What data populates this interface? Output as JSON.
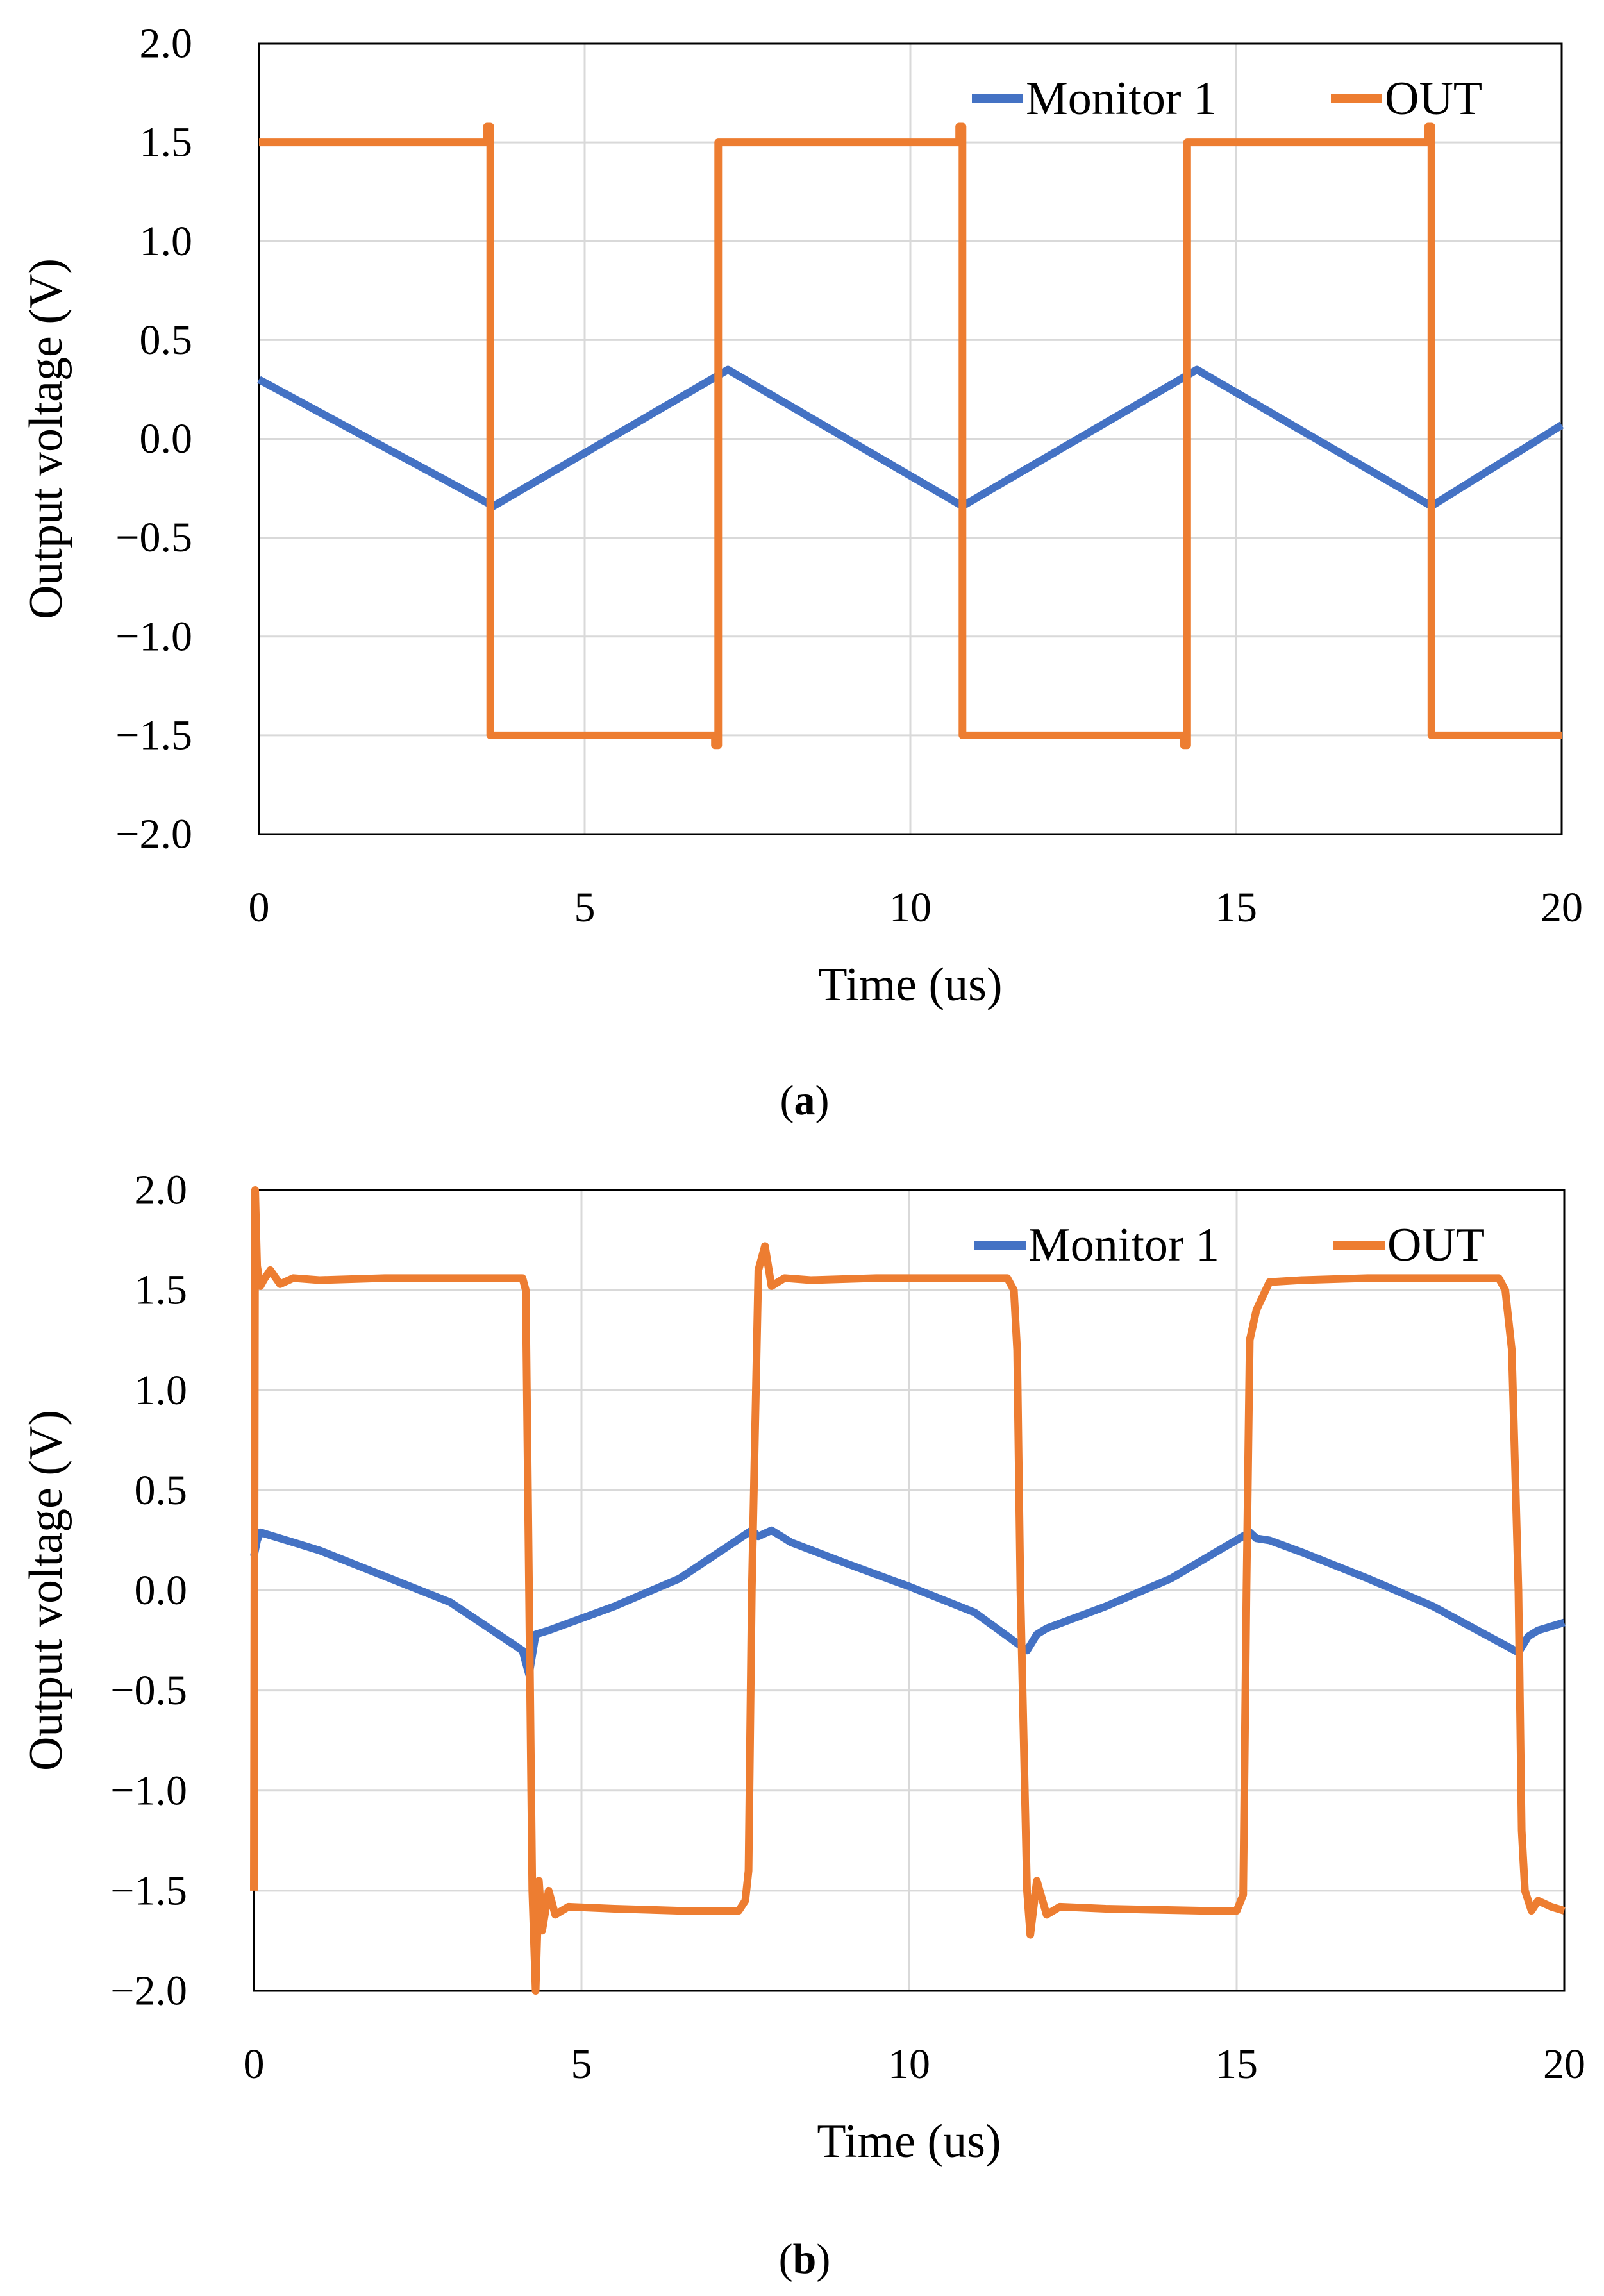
{
  "colors": {
    "monitor": "#4472C4",
    "out": "#ED7D31",
    "grid": "#D9D9D9",
    "axis": "#000000"
  },
  "chart_data": [
    {
      "panel": "a",
      "caption_open": "(",
      "caption_letter": "a",
      "caption_close": ")",
      "type": "line",
      "xlabel": "Time (us)",
      "ylabel": "Output voltage (V)",
      "xlim": [
        0,
        20
      ],
      "ylim": [
        -2.0,
        2.0
      ],
      "xticks": [
        0,
        5,
        10,
        15,
        20
      ],
      "yticks": [
        2.0,
        1.5,
        1.0,
        0.5,
        0.0,
        -0.5,
        -1.0,
        -1.5,
        -2.0
      ],
      "xtick_labels": [
        "0",
        "5",
        "10",
        "15",
        "20"
      ],
      "ytick_labels": [
        "2.0",
        "1.5",
        "1.0",
        "0.5",
        "0.0",
        "−0.5",
        "−1.0",
        "−1.5",
        "−2.0"
      ],
      "legend_position": "top-right",
      "series": [
        {
          "name": "Monitor 1",
          "color": "#4472C4",
          "x": [
            0,
            3.6,
            7.2,
            10.8,
            14.4,
            18.0,
            20.0
          ],
          "y": [
            0.3,
            -0.34,
            0.35,
            -0.34,
            0.35,
            -0.34,
            0.07
          ]
        },
        {
          "name": "OUT",
          "color": "#ED7D31",
          "x": [
            0,
            3.5,
            3.5,
            3.55,
            3.55,
            7.0,
            7.0,
            7.05,
            7.05,
            10.75,
            10.75,
            10.8,
            10.8,
            14.2,
            14.2,
            14.25,
            14.25,
            17.95,
            17.95,
            18.0,
            18.0,
            20.0
          ],
          "y": [
            1.5,
            1.5,
            1.58,
            1.58,
            -1.5,
            -1.5,
            -1.55,
            -1.55,
            1.5,
            1.5,
            1.58,
            1.58,
            -1.5,
            -1.5,
            -1.55,
            -1.55,
            1.5,
            1.5,
            1.58,
            1.58,
            -1.5,
            -1.5
          ]
        }
      ]
    },
    {
      "panel": "b",
      "caption_open": "(",
      "caption_letter": "b",
      "caption_close": ")",
      "type": "line",
      "xlabel": "Time (us)",
      "ylabel": "Output voltage (V)",
      "xlim": [
        0,
        20
      ],
      "ylim": [
        -2.0,
        2.0
      ],
      "xticks": [
        0,
        5,
        10,
        15,
        20
      ],
      "yticks": [
        2.0,
        1.5,
        1.0,
        0.5,
        0.0,
        -0.5,
        -1.0,
        -1.5,
        -2.0
      ],
      "xtick_labels": [
        "0",
        "5",
        "10",
        "15",
        "20"
      ],
      "ytick_labels": [
        "2.0",
        "1.5",
        "1.0",
        "0.5",
        "0.0",
        "−0.5",
        "−1.0",
        "−1.5",
        "−2.0"
      ],
      "legend_position": "top-right",
      "series": [
        {
          "name": "Monitor 1",
          "color": "#4472C4",
          "x": [
            0.0,
            0.05,
            0.1,
            0.2,
            0.5,
            1.0,
            2.0,
            3.0,
            4.1,
            4.2,
            4.3,
            4.5,
            5.5,
            6.5,
            7.6,
            7.7,
            7.9,
            8.2,
            9.0,
            10.0,
            11.0,
            11.8,
            11.95,
            12.1,
            13.0,
            14.0,
            15.2,
            15.3,
            15.5,
            16.0,
            17.0,
            18.0,
            19.3,
            19.45,
            19.6,
            20.0
          ],
          "y": [
            0.17,
            0.25,
            0.29,
            0.28,
            0.25,
            0.2,
            0.07,
            -0.06,
            -0.3,
            -0.42,
            -0.22,
            -0.2,
            -0.08,
            0.06,
            0.3,
            0.27,
            0.3,
            0.24,
            0.14,
            0.02,
            -0.11,
            -0.3,
            -0.22,
            -0.19,
            -0.08,
            0.06,
            0.29,
            0.26,
            0.25,
            0.19,
            0.06,
            -0.08,
            -0.31,
            -0.23,
            -0.2,
            -0.16
          ]
        },
        {
          "name": "OUT",
          "color": "#ED7D31",
          "x": [
            0.0,
            0.02,
            0.05,
            0.1,
            0.15,
            0.25,
            0.4,
            0.6,
            1.0,
            2.0,
            3.0,
            4.0,
            4.1,
            4.15,
            4.2,
            4.25,
            4.3,
            4.35,
            4.4,
            4.5,
            4.6,
            4.8,
            5.5,
            6.5,
            7.4,
            7.5,
            7.55,
            7.6,
            7.7,
            7.8,
            7.9,
            8.1,
            8.5,
            9.5,
            11.0,
            11.5,
            11.6,
            11.65,
            11.7,
            11.8,
            11.85,
            11.95,
            12.1,
            12.3,
            13.0,
            14.5,
            15.0,
            15.1,
            15.15,
            15.2,
            15.3,
            15.5,
            16.0,
            17.0,
            18.0,
            18.9,
            19.0,
            19.1,
            19.2,
            19.3,
            19.35,
            19.4,
            19.5,
            19.6,
            19.8,
            20.0
          ],
          "y": [
            -1.5,
            2.0,
            1.62,
            1.52,
            1.55,
            1.6,
            1.53,
            1.56,
            1.55,
            1.56,
            1.56,
            1.56,
            1.56,
            1.5,
            0.0,
            -1.5,
            -2.0,
            -1.45,
            -1.7,
            -1.5,
            -1.62,
            -1.58,
            -1.59,
            -1.6,
            -1.6,
            -1.55,
            -1.4,
            0.0,
            1.6,
            1.72,
            1.52,
            1.56,
            1.55,
            1.56,
            1.56,
            1.56,
            1.5,
            1.2,
            0.0,
            -1.5,
            -1.72,
            -1.45,
            -1.62,
            -1.58,
            -1.59,
            -1.6,
            -1.6,
            -1.52,
            0.0,
            1.25,
            1.4,
            1.54,
            1.55,
            1.56,
            1.56,
            1.56,
            1.56,
            1.5,
            1.2,
            0.0,
            -1.2,
            -1.5,
            -1.6,
            -1.55,
            -1.58,
            -1.6
          ]
        }
      ]
    }
  ]
}
